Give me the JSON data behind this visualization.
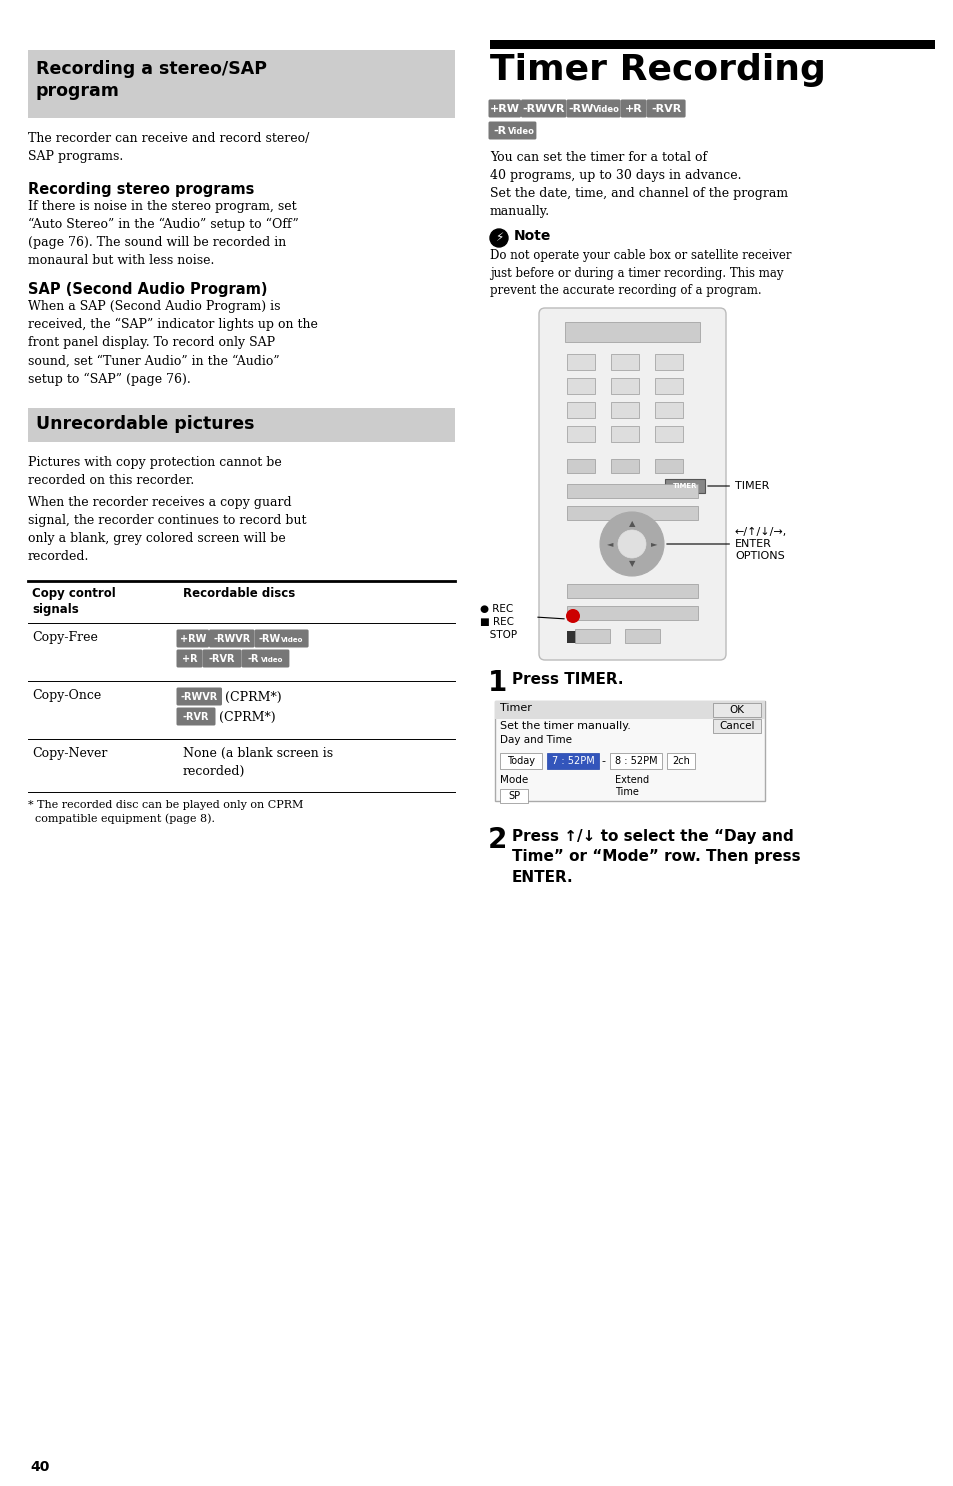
{
  "page_bg": "#ffffff",
  "page_number": "40",
  "section1_bg": "#cccccc",
  "section2_bg": "#cccccc",
  "disc_btn_bg_dark": "#666666",
  "disc_btn_bg_med": "#888888",
  "disc_btn_fg": "#ffffff"
}
